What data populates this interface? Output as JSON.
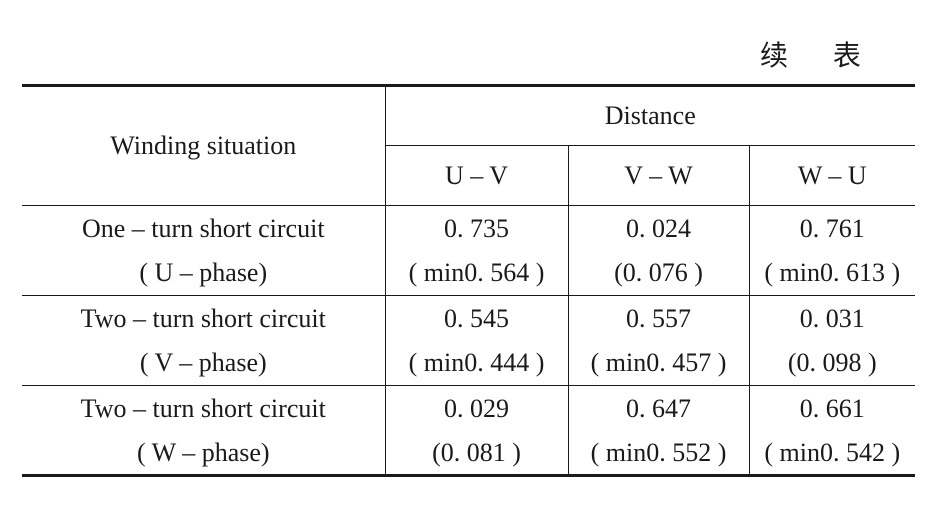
{
  "caption": "续 表",
  "header": {
    "row_label": "Winding situation",
    "group_label": "Distance",
    "columns": [
      "U – V",
      "V – W",
      "W – U"
    ]
  },
  "rows": [
    {
      "label_line1": "One – turn short circuit",
      "label_line2": "( U – phase)",
      "cells": [
        {
          "line1": "0. 735",
          "line2": "( min0. 564 )"
        },
        {
          "line1": "0. 024",
          "line2": "(0. 076 )"
        },
        {
          "line1": "0. 761",
          "line2": "( min0. 613 )"
        }
      ]
    },
    {
      "label_line1": "Two – turn short circuit",
      "label_line2": "( V – phase)",
      "cells": [
        {
          "line1": "0. 545",
          "line2": "( min0. 444 )"
        },
        {
          "line1": "0. 557",
          "line2": "( min0. 457 )"
        },
        {
          "line1": "0. 031",
          "line2": "(0. 098 )"
        }
      ]
    },
    {
      "label_line1": "Two – turn short circuit",
      "label_line2": "( W – phase)",
      "cells": [
        {
          "line1": "0. 029",
          "line2": "(0. 081 )"
        },
        {
          "line1": "0. 647",
          "line2": "( min0. 552 )"
        },
        {
          "line1": "0. 661",
          "line2": "( min0. 542 )"
        }
      ]
    }
  ]
}
